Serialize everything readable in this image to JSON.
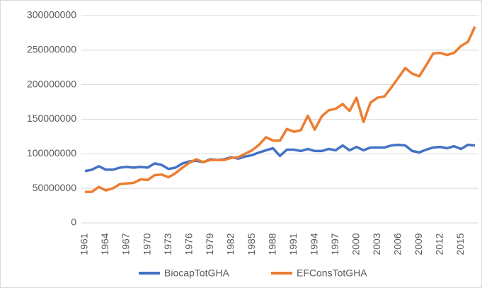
{
  "chart_data": {
    "type": "line",
    "x": [
      1961,
      1962,
      1963,
      1964,
      1965,
      1966,
      1967,
      1968,
      1969,
      1970,
      1971,
      1972,
      1973,
      1974,
      1975,
      1976,
      1977,
      1978,
      1979,
      1980,
      1981,
      1982,
      1983,
      1984,
      1985,
      1986,
      1987,
      1988,
      1989,
      1990,
      1991,
      1992,
      1993,
      1994,
      1995,
      1996,
      1997,
      1998,
      1999,
      2000,
      2001,
      2002,
      2003,
      2004,
      2005,
      2006,
      2007,
      2008,
      2009,
      2010,
      2011,
      2012,
      2013,
      2014,
      2015,
      2016,
      2017
    ],
    "xlim": [
      1961,
      2017
    ],
    "xticks": [
      1961,
      1964,
      1967,
      1970,
      1973,
      1976,
      1979,
      1982,
      1985,
      1988,
      1991,
      1994,
      1997,
      2000,
      2003,
      2006,
      2009,
      2012,
      2015
    ],
    "ylim": [
      0,
      300000000
    ],
    "yticks": [
      0,
      50000000,
      100000000,
      150000000,
      200000000,
      250000000,
      300000000
    ],
    "grid": true,
    "legend": "bottom",
    "series": [
      {
        "name": "BiocapTotGHA",
        "color": "#4472c4",
        "values": [
          75000000,
          77000000,
          82000000,
          77000000,
          77000000,
          80000000,
          81000000,
          80000000,
          81000000,
          80000000,
          86000000,
          84000000,
          78000000,
          80000000,
          86000000,
          89000000,
          90000000,
          88000000,
          92000000,
          91000000,
          92000000,
          95000000,
          93000000,
          96000000,
          98000000,
          102000000,
          105000000,
          108000000,
          97000000,
          106000000,
          106000000,
          104000000,
          107000000,
          104000000,
          104000000,
          107000000,
          105000000,
          112000000,
          105000000,
          110000000,
          105000000,
          109000000,
          109000000,
          109000000,
          112000000,
          113000000,
          112000000,
          104000000,
          102000000,
          106000000,
          109000000,
          110000000,
          108000000,
          111000000,
          107000000,
          113000000,
          112000000
        ]
      },
      {
        "name": "EFConsTotGHA",
        "color": "#ed7d31",
        "values": [
          45000000,
          45000000,
          52000000,
          47000000,
          50000000,
          56000000,
          57000000,
          58000000,
          63000000,
          62000000,
          69000000,
          70000000,
          66000000,
          72000000,
          80000000,
          87000000,
          92000000,
          88000000,
          91000000,
          91000000,
          91000000,
          94000000,
          95000000,
          100000000,
          105000000,
          113000000,
          124000000,
          119000000,
          119000000,
          136000000,
          132000000,
          134000000,
          155000000,
          135000000,
          154000000,
          163000000,
          165000000,
          172000000,
          162000000,
          181000000,
          146000000,
          174000000,
          181000000,
          183000000,
          196000000,
          210000000,
          224000000,
          216000000,
          212000000,
          228000000,
          245000000,
          246000000,
          243000000,
          246000000,
          256000000,
          262000000,
          284000000
        ]
      }
    ]
  }
}
